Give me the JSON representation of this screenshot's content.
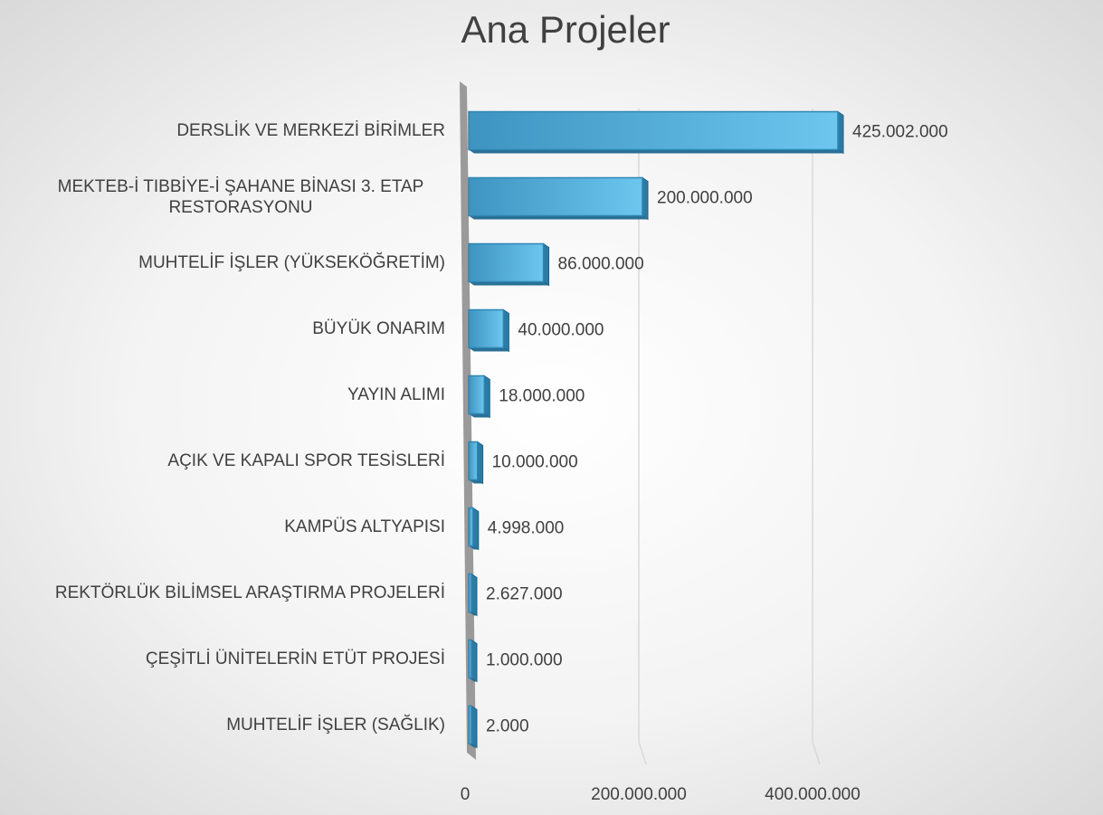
{
  "chart_data": {
    "type": "bar",
    "orientation": "horizontal",
    "title": "Ana Projeler",
    "categories": [
      "DERSLİK VE MERKEZİ BİRİMLER",
      "MEKTEB-İ TIBBİYE-İ ŞAHANE BİNASI 3. ETAP RESTORASYONU",
      "MUHTELİF İŞLER (YÜKSEKÖĞRETİM)",
      "BÜYÜK ONARIM",
      "YAYIN ALIMI",
      "AÇIK VE KAPALI SPOR TESİSLERİ",
      "KAMPÜS ALTYAPISI",
      "REKTÖRLÜK BİLİMSEL ARAŞTIRMA PROJELERİ",
      "ÇEŞİTLİ ÜNİTELERİN ETÜT PROJESİ",
      "MUHTELİF İŞLER (SAĞLIK)"
    ],
    "values": [
      425002000,
      200000000,
      86000000,
      40000000,
      18000000,
      10000000,
      4998000,
      2627000,
      1000000,
      2000
    ],
    "value_labels": [
      "425.002.000",
      "200.000.000",
      "86.000.000",
      "40.000.000",
      "18.000.000",
      "10.000.000",
      "4.998.000",
      "2.627.000",
      "1.000.000",
      "2.000"
    ],
    "color": "#4fa8d4",
    "xlim": [
      0,
      450000000
    ],
    "xticks": [
      0,
      {
        "value": 200000000,
        "label": "200.000.000"
      },
      {
        "value": 400000000,
        "label": "400.000.000"
      }
    ],
    "grid": true
  }
}
